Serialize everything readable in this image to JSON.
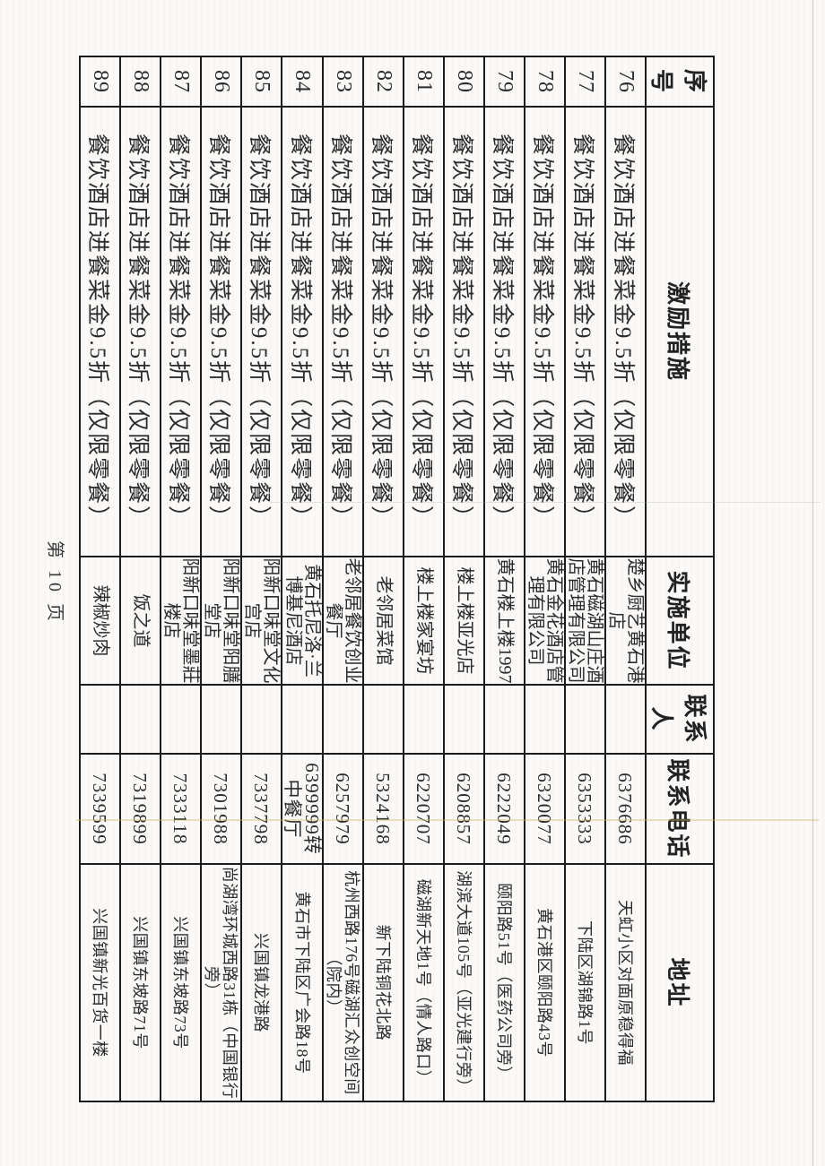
{
  "page": {
    "footer": "第 10 页"
  },
  "table": {
    "headers": [
      "序号",
      "激励措施",
      "实施单位",
      "联系人",
      "联系电话",
      "地址"
    ],
    "rows": [
      {
        "no": "76",
        "measure": "餐饮酒店进餐菜金9.5折（仅限零餐）",
        "unit": "楚乡厨艺黄石港店",
        "contact": "",
        "phone": "6376686",
        "address": "天虹小区对面原稳得福"
      },
      {
        "no": "77",
        "measure": "餐饮酒店进餐菜金9.5折（仅限零餐）",
        "unit": "黄石磁湖山庄酒店管理有限公司",
        "contact": "",
        "phone": "6353333",
        "address": "下陆区湖锦路1号"
      },
      {
        "no": "78",
        "measure": "餐饮酒店进餐菜金9.5折（仅限零餐）",
        "unit": "黄石金花酒店管理有限公司",
        "contact": "",
        "phone": "6320077",
        "address": "黄石港区颐阳路43号"
      },
      {
        "no": "79",
        "measure": "餐饮酒店进餐菜金9.5折（仅限零餐）",
        "unit": "黄石楼上楼1997",
        "contact": "",
        "phone": "6222049",
        "address": "颐阳路51号（医药公司旁）"
      },
      {
        "no": "80",
        "measure": "餐饮酒店进餐菜金9.5折（仅限零餐）",
        "unit": "楼上楼亚光店",
        "contact": "",
        "phone": "6208857",
        "address": "湖滨大道105号（亚光建行旁）"
      },
      {
        "no": "81",
        "measure": "餐饮酒店进餐菜金9.5折（仅限零餐）",
        "unit": "楼上楼家宴坊",
        "contact": "",
        "phone": "6220707",
        "address": "磁湖新天地1号（情人路口）"
      },
      {
        "no": "82",
        "measure": "餐饮酒店进餐菜金9.5折（仅限零餐）",
        "unit": "老邻居菜馆",
        "contact": "",
        "phone": "5324168",
        "address": "新下陆铜花北路"
      },
      {
        "no": "83",
        "measure": "餐饮酒店进餐菜金9.5折（仅限零餐）",
        "unit": "老邻居餐饮创业餐厅",
        "contact": "",
        "phone": "6257979",
        "address": "杭州西路176号磁湖汇众创空间（院内）"
      },
      {
        "no": "84",
        "measure": "餐饮酒店进餐菜金9.5折（仅限零餐）",
        "unit": "黄石托尼洛·兰博基尼酒店",
        "contact": "",
        "phone": "6399999转中餐厅",
        "address": "黄石市下陆区广会路18号"
      },
      {
        "no": "85",
        "measure": "餐饮酒店进餐菜金9.5折（仅限零餐）",
        "unit": "阳新口味堂文化宫店",
        "contact": "",
        "phone": "7337798",
        "address": "兴国镇龙港路"
      },
      {
        "no": "86",
        "measure": "餐饮酒店进餐菜金9.5折（仅限零餐）",
        "unit": "阳新口味堂阳膳堂店",
        "contact": "",
        "phone": "7301988",
        "address": "尚湖湾环城西路31栋（中国银行旁）"
      },
      {
        "no": "87",
        "measure": "餐饮酒店进餐菜金9.5折（仅限零餐）",
        "unit": "阳新口味堂墨莊楼店",
        "contact": "",
        "phone": "7333118",
        "address": "兴国镇东坡路73号"
      },
      {
        "no": "88",
        "measure": "餐饮酒店进餐菜金9.5折（仅限零餐）",
        "unit": "饭之道",
        "contact": "",
        "phone": "7319899",
        "address": "兴国镇东坡路71号"
      },
      {
        "no": "89",
        "measure": "餐饮酒店进餐菜金9.5折（仅限零餐）",
        "unit": "辣椒炒肉",
        "contact": "",
        "phone": "7339599",
        "address": "兴国镇新光百货一楼"
      }
    ]
  }
}
